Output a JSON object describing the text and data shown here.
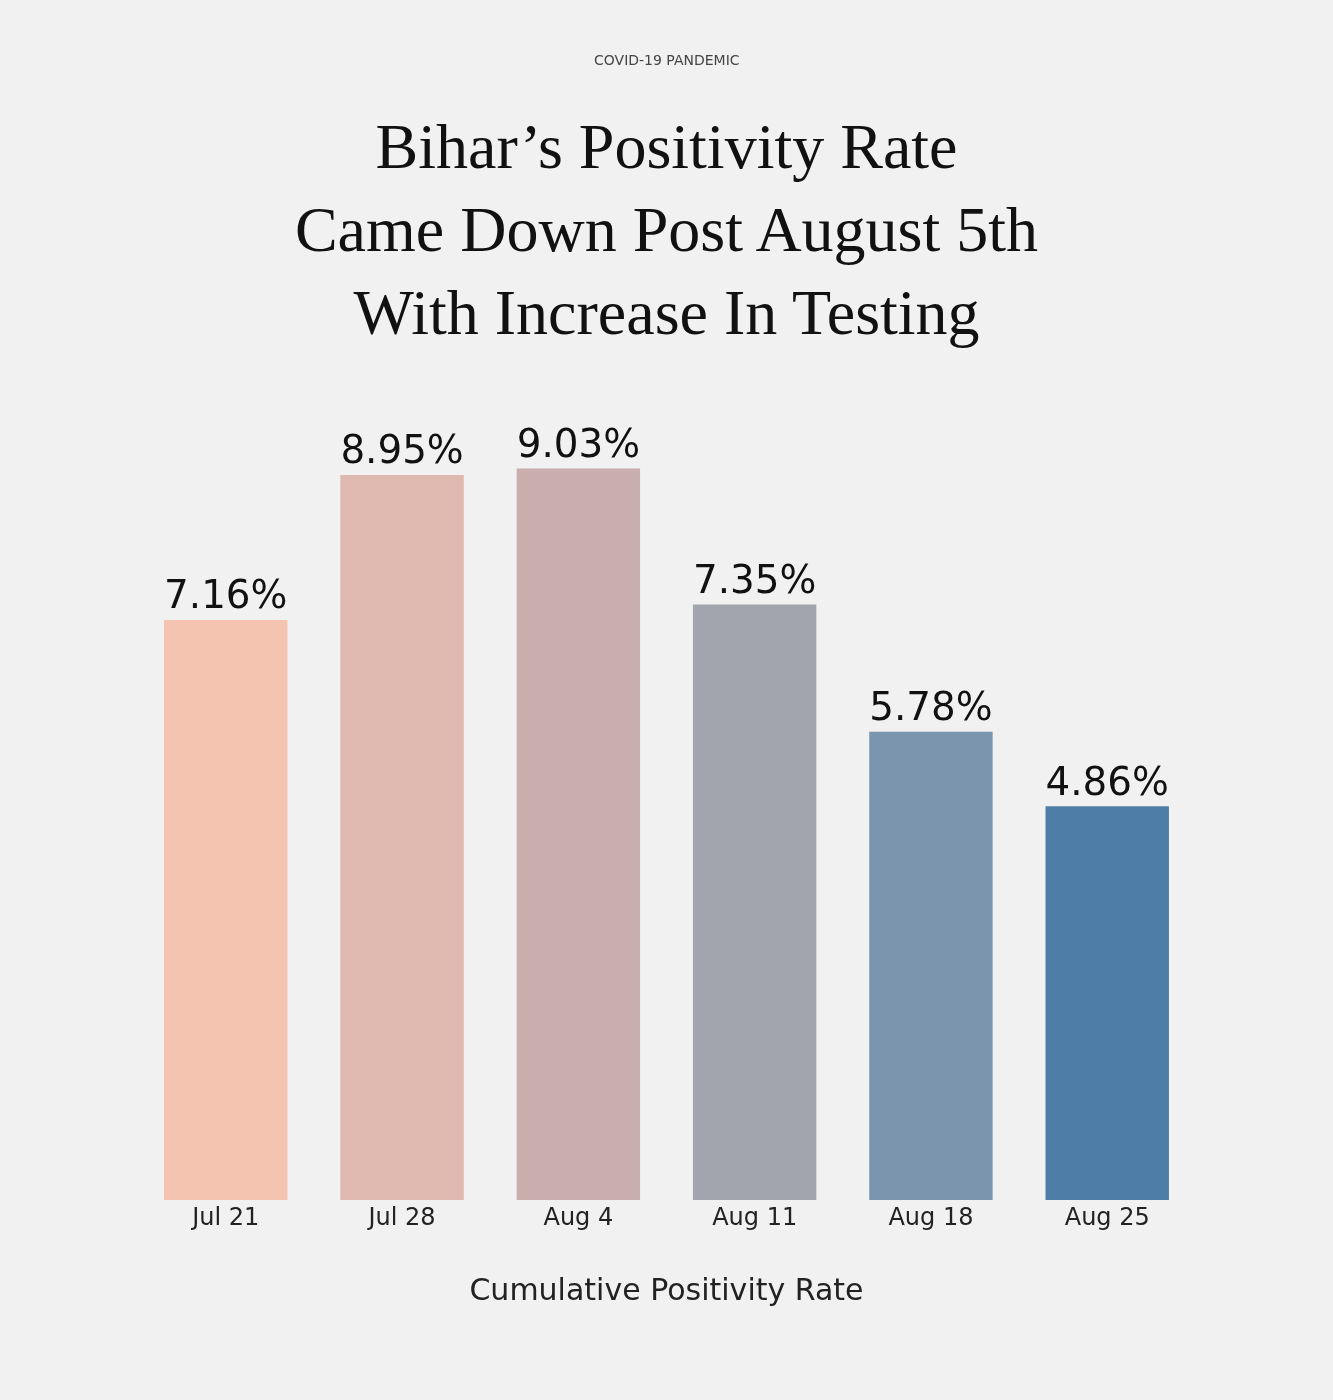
{
  "chart_data": {
    "type": "bar",
    "subtitle": "COVID-19 PANDEMIC",
    "title": "Bihar’s Positivity Rate Came Down Post August 5th With Increase In Testing",
    "xlabel": "Cumulative Positivity Rate",
    "categories": [
      "Jul 21",
      "Jul 28",
      "Aug 4",
      "Aug 11",
      "Aug 18",
      "Aug 25"
    ],
    "values": [
      7.16,
      8.95,
      9.03,
      7.35,
      5.78,
      4.86
    ],
    "value_labels": [
      "7.16%",
      "8.95%",
      "9.03%",
      "7.35%",
      "5.78%",
      "4.86%"
    ],
    "colors": [
      "#f4c4b0",
      "#dfb8b0",
      "#c9aeae",
      "#a3a5ae",
      "#7a95ad",
      "#4e7ea8"
    ],
    "grid": false,
    "legend": false
  }
}
